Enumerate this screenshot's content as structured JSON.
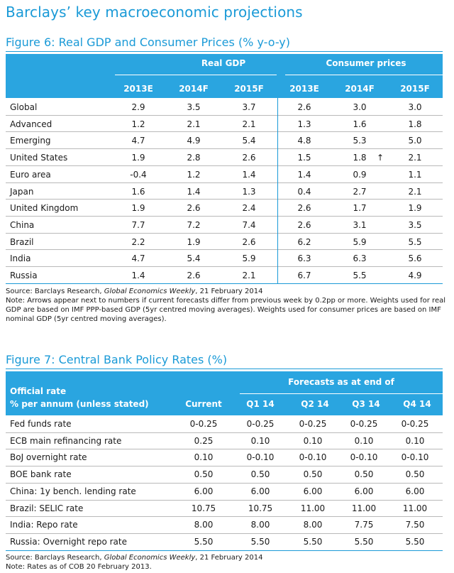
{
  "page": {
    "title": "Barclays’ key macroeconomic projections"
  },
  "fig6": {
    "title": "Figure 6: Real GDP and Consumer Prices (% y-o-y)",
    "group_gdp": "Real GDP",
    "group_cpi": "Consumer prices",
    "years": [
      "2013E",
      "2014F",
      "2015F",
      "2013E",
      "2014F",
      "2015F"
    ],
    "rows": [
      {
        "label": "Global",
        "v": [
          "2.9",
          "3.5",
          "3.7",
          "2.6",
          "3.0",
          "3.0"
        ]
      },
      {
        "label": "Advanced",
        "v": [
          "1.2",
          "2.1",
          "2.1",
          "1.3",
          "1.6",
          "1.8"
        ]
      },
      {
        "label": "Emerging",
        "v": [
          "4.7",
          "4.9",
          "5.4",
          "4.8",
          "5.3",
          "5.0"
        ]
      },
      {
        "label": "United States",
        "v": [
          "1.9",
          "2.8",
          "2.6",
          "1.5",
          "1.8",
          "2.1"
        ],
        "arrow": "↑"
      },
      {
        "label": "Euro area",
        "v": [
          "-0.4",
          "1.2",
          "1.4",
          "1.4",
          "0.9",
          "1.1"
        ]
      },
      {
        "label": "Japan",
        "v": [
          "1.6",
          "1.4",
          "1.3",
          "0.4",
          "2.7",
          "2.1"
        ]
      },
      {
        "label": "United Kingdom",
        "v": [
          "1.9",
          "2.6",
          "2.4",
          "2.6",
          "1.7",
          "1.9"
        ]
      },
      {
        "label": "China",
        "v": [
          "7.7",
          "7.2",
          "7.4",
          "2.6",
          "3.1",
          "3.5"
        ]
      },
      {
        "label": "Brazil",
        "v": [
          "2.2",
          "1.9",
          "2.6",
          "6.2",
          "5.9",
          "5.5"
        ]
      },
      {
        "label": "India",
        "v": [
          "4.7",
          "5.4",
          "5.9",
          "6.3",
          "6.3",
          "5.6"
        ]
      },
      {
        "label": "Russia",
        "v": [
          "1.4",
          "2.6",
          "2.1",
          "6.7",
          "5.5",
          "4.9"
        ]
      }
    ],
    "source_prefix": "Source: Barclays Research, ",
    "source_pub": "Global Economics Weekly",
    "source_date": ", 21 February 2014",
    "note": "Note: Arrows appear next to numbers if current forecasts differ from previous week by 0.2pp or more. Weights used for real GDP are based on IMF PPP-based GDP (5yr centred moving averages). Weights used for consumer prices are based on IMF nominal GDP (5yr centred moving averages)."
  },
  "fig7": {
    "title": "Figure 7: Central Bank Policy Rates (%)",
    "forecast_header": "Forecasts as at end of",
    "label_header_1": "Official rate",
    "label_header_2": "% per annum (unless stated)",
    "cols": [
      "Current",
      "Q1 14",
      "Q2 14",
      "Q3 14",
      "Q4 14"
    ],
    "rows": [
      {
        "label": "Fed funds rate",
        "v": [
          "0-0.25",
          "0-0.25",
          "0-0.25",
          "0-0.25",
          "0-0.25"
        ]
      },
      {
        "label": "ECB main refinancing rate",
        "v": [
          "0.25",
          "0.10",
          "0.10",
          "0.10",
          "0.10"
        ]
      },
      {
        "label": "BoJ overnight rate",
        "v": [
          "0.10",
          "0-0.10",
          "0-0.10",
          "0-0.10",
          "0-0.10"
        ]
      },
      {
        "label": "BOE bank rate",
        "v": [
          "0.50",
          "0.50",
          "0.50",
          "0.50",
          "0.50"
        ]
      },
      {
        "label": "China: 1y bench. lending rate",
        "v": [
          "6.00",
          "6.00",
          "6.00",
          "6.00",
          "6.00"
        ]
      },
      {
        "label": "Brazil: SELIC rate",
        "v": [
          "10.75",
          "10.75",
          "11.00",
          "11.00",
          "11.00"
        ]
      },
      {
        "label": "India: Repo rate",
        "v": [
          "8.00",
          "8.00",
          "8.00",
          "7.75",
          "7.50"
        ]
      },
      {
        "label": "Russia: Overnight repo rate",
        "v": [
          "5.50",
          "5.50",
          "5.50",
          "5.50",
          "5.50"
        ]
      }
    ],
    "source_prefix": "Source: Barclays Research, ",
    "source_pub": "Global Economics Weekly",
    "source_date": ", 21 February 2014",
    "note": "Note: Rates as of COB 20 February 2013."
  }
}
